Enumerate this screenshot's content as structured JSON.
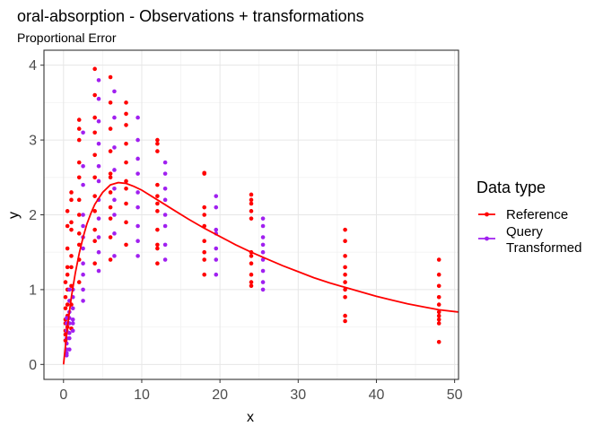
{
  "chart_data": {
    "type": "scatter",
    "title": "oral-absorption - Observations + transformations",
    "subtitle": "Proportional Error",
    "xlabel": "x",
    "ylabel": "y",
    "xlim": [
      -2.5,
      50.5
    ],
    "ylim": [
      -0.2,
      4.2
    ],
    "x_ticks": [
      0,
      10,
      20,
      30,
      40,
      50
    ],
    "y_ticks": [
      0,
      1,
      2,
      3,
      4
    ],
    "grid": true,
    "legend": {
      "title": "Data type",
      "position": "right",
      "entries": [
        {
          "label": "Reference",
          "color": "#FF0000"
        },
        {
          "label": "Query\nTransformed",
          "color": "#A020F0"
        }
      ]
    },
    "series": [
      {
        "name": "Reference",
        "color": "#FF0000",
        "points": [
          [
            0.25,
            0.32
          ],
          [
            0.25,
            0.45
          ],
          [
            0.25,
            0.6
          ],
          [
            0.25,
            0.75
          ],
          [
            0.25,
            0.9
          ],
          [
            0.25,
            1.1
          ],
          [
            0.25,
            0.55
          ],
          [
            0.25,
            0.4
          ],
          [
            0.5,
            0.5
          ],
          [
            0.5,
            0.8
          ],
          [
            0.5,
            1.0
          ],
          [
            0.5,
            1.3
          ],
          [
            0.5,
            1.55
          ],
          [
            0.5,
            1.85
          ],
          [
            0.5,
            2.05
          ],
          [
            0.5,
            0.65
          ],
          [
            0.5,
            1.2
          ],
          [
            1,
            0.8
          ],
          [
            1,
            1.05
          ],
          [
            1,
            1.3
          ],
          [
            1,
            1.45
          ],
          [
            1,
            1.8
          ],
          [
            1,
            1.9
          ],
          [
            1,
            2.2
          ],
          [
            1,
            2.3
          ],
          [
            1,
            0.48
          ],
          [
            2,
            1.1
          ],
          [
            2,
            1.4
          ],
          [
            2,
            1.6
          ],
          [
            2,
            1.75
          ],
          [
            2,
            2.0
          ],
          [
            2,
            2.2
          ],
          [
            2,
            2.5
          ],
          [
            2,
            2.7
          ],
          [
            2,
            3.0
          ],
          [
            2,
            3.15
          ],
          [
            2,
            3.27
          ],
          [
            4,
            1.35
          ],
          [
            4,
            1.65
          ],
          [
            4,
            1.8
          ],
          [
            4,
            2.05
          ],
          [
            4,
            2.25
          ],
          [
            4,
            2.5
          ],
          [
            4,
            2.8
          ],
          [
            4,
            3.1
          ],
          [
            4,
            3.3
          ],
          [
            4,
            3.6
          ],
          [
            4,
            3.95
          ],
          [
            6,
            1.4
          ],
          [
            6,
            1.7
          ],
          [
            6,
            1.95
          ],
          [
            6,
            2.1
          ],
          [
            6,
            2.3
          ],
          [
            6,
            2.5
          ],
          [
            6,
            2.55
          ],
          [
            6,
            2.85
          ],
          [
            6,
            3.15
          ],
          [
            6,
            3.5
          ],
          [
            6,
            3.84
          ],
          [
            8,
            1.6
          ],
          [
            8,
            1.9
          ],
          [
            8,
            2.15
          ],
          [
            8,
            2.35
          ],
          [
            8,
            2.45
          ],
          [
            8,
            2.7
          ],
          [
            8,
            2.95
          ],
          [
            8,
            3.2
          ],
          [
            8,
            3.35
          ],
          [
            8,
            3.5
          ],
          [
            12,
            1.35
          ],
          [
            12,
            1.55
          ],
          [
            12,
            1.6
          ],
          [
            12,
            1.8
          ],
          [
            12,
            2.05
          ],
          [
            12,
            2.15
          ],
          [
            12,
            2.25
          ],
          [
            12,
            2.4
          ],
          [
            12,
            2.85
          ],
          [
            12,
            2.95
          ],
          [
            12,
            3.0
          ],
          [
            18,
            1.2
          ],
          [
            18,
            1.4
          ],
          [
            18,
            1.5
          ],
          [
            18,
            1.65
          ],
          [
            18,
            1.85
          ],
          [
            18,
            2.0
          ],
          [
            18,
            2.1
          ],
          [
            18,
            2.55
          ],
          [
            18,
            2.56
          ],
          [
            24,
            1.05
          ],
          [
            24,
            1.1
          ],
          [
            24,
            1.2
          ],
          [
            24,
            1.35
          ],
          [
            24,
            1.45
          ],
          [
            24,
            1.5
          ],
          [
            24,
            1.95
          ],
          [
            24,
            2.05
          ],
          [
            24,
            2.15
          ],
          [
            24,
            2.2
          ],
          [
            24,
            2.27
          ],
          [
            36,
            0.58
          ],
          [
            36,
            0.65
          ],
          [
            36,
            0.9
          ],
          [
            36,
            1.0
          ],
          [
            36,
            1.1
          ],
          [
            36,
            1.2
          ],
          [
            36,
            1.3
          ],
          [
            36,
            1.45
          ],
          [
            36,
            1.65
          ],
          [
            36,
            1.8
          ],
          [
            48,
            0.3
          ],
          [
            48,
            0.55
          ],
          [
            48,
            0.6
          ],
          [
            48,
            0.65
          ],
          [
            48,
            0.7
          ],
          [
            48,
            0.8
          ],
          [
            48,
            0.9
          ],
          [
            48,
            1.05
          ],
          [
            48,
            1.2
          ],
          [
            48,
            1.4
          ]
        ]
      },
      {
        "name": "Query\nTransformed",
        "color": "#A020F0",
        "points": [
          [
            0.4,
            0.12
          ],
          [
            0.4,
            0.2
          ],
          [
            0.4,
            0.28
          ],
          [
            0.4,
            0.35
          ],
          [
            0.4,
            0.45
          ],
          [
            0.4,
            0.55
          ],
          [
            0.4,
            0.62
          ],
          [
            0.4,
            0.15
          ],
          [
            0.75,
            0.2
          ],
          [
            0.75,
            0.35
          ],
          [
            0.75,
            0.55
          ],
          [
            0.75,
            0.7
          ],
          [
            0.75,
            0.85
          ],
          [
            0.75,
            1.0
          ],
          [
            0.75,
            0.42
          ],
          [
            0.75,
            0.62
          ],
          [
            1.2,
            0.45
          ],
          [
            1.2,
            0.6
          ],
          [
            1.2,
            0.75
          ],
          [
            1.2,
            0.9
          ],
          [
            1.2,
            1.0
          ],
          [
            1.2,
            0.55
          ],
          [
            2.5,
            0.85
          ],
          [
            2.5,
            1.0
          ],
          [
            2.5,
            1.2
          ],
          [
            2.5,
            1.35
          ],
          [
            2.5,
            1.55
          ],
          [
            2.5,
            1.7
          ],
          [
            2.5,
            1.85
          ],
          [
            2.5,
            2.0
          ],
          [
            2.5,
            2.4
          ],
          [
            2.5,
            2.65
          ],
          [
            2.5,
            3.1
          ],
          [
            4.5,
            1.25
          ],
          [
            4.5,
            1.5
          ],
          [
            4.5,
            1.7
          ],
          [
            4.5,
            1.95
          ],
          [
            4.5,
            2.2
          ],
          [
            4.5,
            2.45
          ],
          [
            4.5,
            2.65
          ],
          [
            4.5,
            2.95
          ],
          [
            4.5,
            3.25
          ],
          [
            4.5,
            3.55
          ],
          [
            4.5,
            3.8
          ],
          [
            6.5,
            1.45
          ],
          [
            6.5,
            1.75
          ],
          [
            6.5,
            2.0
          ],
          [
            6.5,
            2.2
          ],
          [
            6.5,
            2.35
          ],
          [
            6.5,
            2.6
          ],
          [
            6.5,
            2.9
          ],
          [
            6.5,
            3.3
          ],
          [
            6.5,
            3.65
          ],
          [
            9.5,
            1.45
          ],
          [
            9.5,
            1.65
          ],
          [
            9.5,
            1.85
          ],
          [
            9.5,
            2.1
          ],
          [
            9.5,
            2.3
          ],
          [
            9.5,
            2.55
          ],
          [
            9.5,
            2.75
          ],
          [
            9.5,
            3.0
          ],
          [
            9.5,
            3.3
          ],
          [
            13,
            1.4
          ],
          [
            13,
            1.6
          ],
          [
            13,
            1.85
          ],
          [
            13,
            2.0
          ],
          [
            13,
            2.2
          ],
          [
            13,
            2.35
          ],
          [
            13,
            2.55
          ],
          [
            13,
            2.7
          ],
          [
            19.5,
            1.2
          ],
          [
            19.5,
            1.4
          ],
          [
            19.5,
            1.55
          ],
          [
            19.5,
            1.75
          ],
          [
            19.5,
            1.8
          ],
          [
            19.5,
            2.1
          ],
          [
            19.5,
            2.25
          ],
          [
            25.5,
            1.0
          ],
          [
            25.5,
            1.1
          ],
          [
            25.5,
            1.25
          ],
          [
            25.5,
            1.4
          ],
          [
            25.5,
            1.5
          ],
          [
            25.5,
            1.6
          ],
          [
            25.5,
            1.7
          ],
          [
            25.5,
            1.85
          ],
          [
            25.5,
            1.95
          ]
        ]
      },
      {
        "name": "Reference",
        "color": "#FF0000",
        "kind": "line",
        "points": [
          [
            0,
            0
          ],
          [
            0.5,
            0.5
          ],
          [
            1,
            0.9
          ],
          [
            1.5,
            1.22
          ],
          [
            2,
            1.48
          ],
          [
            2.5,
            1.7
          ],
          [
            3,
            1.88
          ],
          [
            3.5,
            2.02
          ],
          [
            4,
            2.14
          ],
          [
            5,
            2.3
          ],
          [
            6,
            2.4
          ],
          [
            7,
            2.43
          ],
          [
            8,
            2.42
          ],
          [
            9,
            2.38
          ],
          [
            10,
            2.33
          ],
          [
            12,
            2.2
          ],
          [
            14,
            2.07
          ],
          [
            16,
            1.94
          ],
          [
            18,
            1.82
          ],
          [
            20,
            1.71
          ],
          [
            22,
            1.6
          ],
          [
            24,
            1.5
          ],
          [
            26,
            1.41
          ],
          [
            28,
            1.32
          ],
          [
            30,
            1.24
          ],
          [
            32,
            1.16
          ],
          [
            34,
            1.09
          ],
          [
            36,
            1.03
          ],
          [
            38,
            0.97
          ],
          [
            40,
            0.91
          ],
          [
            42,
            0.86
          ],
          [
            44,
            0.81
          ],
          [
            46,
            0.77
          ],
          [
            48,
            0.73
          ],
          [
            50.5,
            0.7
          ]
        ]
      }
    ]
  }
}
